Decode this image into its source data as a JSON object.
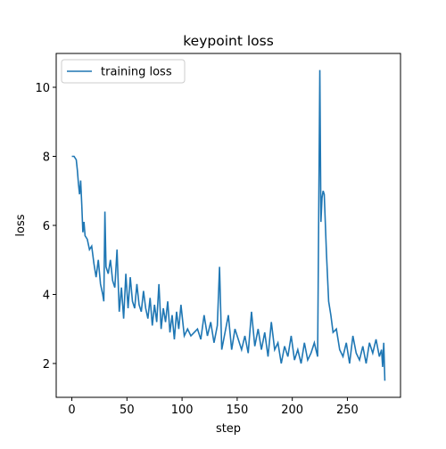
{
  "chart_data": {
    "type": "line",
    "title": "keypoint loss",
    "xlabel": "step",
    "ylabel": "loss",
    "x": [
      0,
      2,
      4,
      5,
      6,
      7,
      8,
      9,
      10,
      11,
      12,
      14,
      16,
      18,
      20,
      22,
      24,
      26,
      28,
      29,
      30,
      31,
      33,
      35,
      37,
      39,
      41,
      43,
      45,
      47,
      49,
      51,
      53,
      55,
      57,
      59,
      61,
      63,
      65,
      67,
      69,
      71,
      73,
      75,
      77,
      79,
      81,
      83,
      85,
      87,
      89,
      91,
      93,
      95,
      97,
      99,
      102,
      105,
      108,
      111,
      114,
      117,
      120,
      123,
      126,
      129,
      132,
      134,
      136,
      139,
      142,
      145,
      148,
      151,
      154,
      157,
      160,
      163,
      166,
      169,
      172,
      175,
      178,
      181,
      184,
      187,
      190,
      193,
      196,
      199,
      202,
      205,
      208,
      211,
      214,
      217,
      220,
      223,
      225,
      226,
      227,
      228,
      229,
      231,
      233,
      235,
      237,
      240,
      243,
      246,
      249,
      252,
      255,
      258,
      261,
      264,
      267,
      270,
      273,
      276,
      279,
      281,
      282,
      283,
      284
    ],
    "series": [
      {
        "name": "training loss",
        "color": "#1f77b4",
        "values": [
          8.0,
          8.0,
          7.9,
          7.6,
          7.2,
          6.9,
          7.3,
          6.6,
          5.8,
          6.1,
          5.7,
          5.6,
          5.3,
          5.4,
          4.9,
          4.5,
          5.0,
          4.3,
          4.0,
          3.8,
          6.4,
          4.8,
          4.6,
          5.0,
          4.4,
          4.2,
          5.3,
          3.5,
          4.2,
          3.3,
          4.6,
          3.6,
          4.5,
          3.8,
          3.6,
          4.3,
          3.7,
          3.5,
          4.1,
          3.6,
          3.3,
          3.9,
          3.1,
          3.7,
          3.2,
          4.3,
          3.0,
          3.6,
          3.2,
          3.8,
          2.9,
          3.4,
          2.7,
          3.5,
          3.0,
          3.7,
          2.8,
          3.0,
          2.8,
          2.9,
          3.0,
          2.7,
          3.4,
          2.8,
          3.2,
          2.6,
          3.1,
          4.8,
          2.4,
          2.9,
          3.4,
          2.4,
          3.0,
          2.7,
          2.4,
          2.8,
          2.3,
          3.5,
          2.5,
          3.0,
          2.4,
          2.9,
          2.2,
          3.2,
          2.4,
          2.6,
          2.0,
          2.5,
          2.2,
          2.8,
          2.1,
          2.4,
          2.0,
          2.6,
          2.1,
          2.3,
          2.6,
          2.2,
          10.5,
          6.1,
          6.8,
          7.0,
          6.9,
          5.2,
          3.8,
          3.4,
          2.9,
          3.0,
          2.4,
          2.2,
          2.6,
          2.0,
          2.8,
          2.3,
          2.1,
          2.5,
          2.0,
          2.6,
          2.3,
          2.7,
          2.2,
          2.4,
          1.9,
          2.6,
          1.5
        ]
      }
    ],
    "xlim": [
      -14.2,
      298.2
    ],
    "xticks": [
      0,
      50,
      100,
      150,
      200,
      250
    ],
    "ylim": [
      1.02,
      10.98
    ],
    "yticks": [
      2,
      4,
      6,
      8,
      10
    ],
    "legend": "upper left",
    "grid": false
  }
}
